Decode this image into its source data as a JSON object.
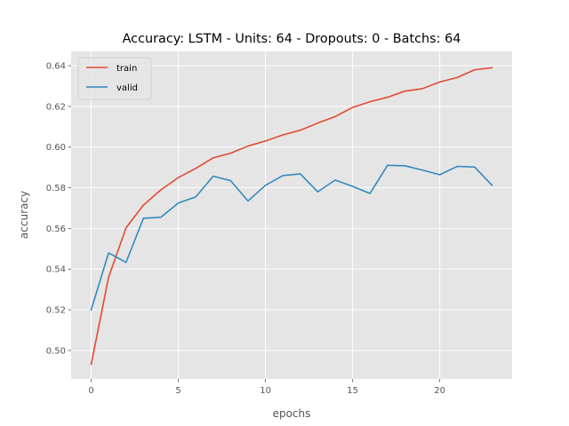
{
  "chart_data": {
    "type": "line",
    "title": "Accuracy: LSTM - Units: 64 - Dropouts: 0 - Batchs: 64",
    "xlabel": "epochs",
    "ylabel": "accuracy",
    "xlim": [
      -1.15,
      24.15
    ],
    "ylim": [
      0.486,
      0.647
    ],
    "xticks": [
      0,
      5,
      10,
      15,
      20
    ],
    "yticks": [
      0.5,
      0.52,
      0.54,
      0.56,
      0.58,
      0.6,
      0.62,
      0.64
    ],
    "ytick_labels": [
      "0.50",
      "0.52",
      "0.54",
      "0.56",
      "0.58",
      "0.60",
      "0.62",
      "0.64"
    ],
    "xtick_labels": [
      "0",
      "5",
      "10",
      "15",
      "20"
    ],
    "grid": true,
    "legend_position": "upper-left",
    "x": [
      0,
      1,
      2,
      3,
      4,
      5,
      6,
      7,
      8,
      9,
      10,
      11,
      12,
      13,
      14,
      15,
      16,
      17,
      18,
      19,
      20,
      21,
      22,
      23
    ],
    "series": [
      {
        "name": "train",
        "color": "#E24A33",
        "values": [
          0.4932,
          0.536,
          0.5603,
          0.5715,
          0.579,
          0.585,
          0.5895,
          0.5947,
          0.597,
          0.6005,
          0.603,
          0.606,
          0.6083,
          0.6118,
          0.615,
          0.6195,
          0.6223,
          0.6245,
          0.6275,
          0.6287,
          0.632,
          0.6342,
          0.638,
          0.639
        ]
      },
      {
        "name": "valid",
        "color": "#348ABD",
        "values": [
          0.52,
          0.548,
          0.5433,
          0.565,
          0.5655,
          0.5725,
          0.5755,
          0.5857,
          0.5835,
          0.5735,
          0.5812,
          0.586,
          0.5868,
          0.578,
          0.5838,
          0.5807,
          0.5772,
          0.591,
          0.5908,
          0.5887,
          0.5864,
          0.5905,
          0.5902,
          0.5812
        ]
      }
    ]
  }
}
